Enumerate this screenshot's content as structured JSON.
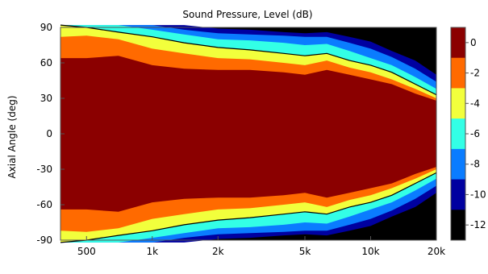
{
  "chart_data": {
    "type": "heatmap",
    "title": "Sound Pressure, Level  (dB)",
    "xlabel": "",
    "ylabel": "Axial Angle  (deg)",
    "x_scale": "log",
    "xlim": [
      380,
      20000
    ],
    "ylim": [
      -90,
      90
    ],
    "x_ticks": [
      {
        "value": 500,
        "label": "500"
      },
      {
        "value": 1000,
        "label": "1k"
      },
      {
        "value": 2000,
        "label": "2k"
      },
      {
        "value": 5000,
        "label": "5k"
      },
      {
        "value": 10000,
        "label": "10k"
      },
      {
        "value": 20000,
        "label": "20k"
      }
    ],
    "y_ticks": [
      90,
      60,
      30,
      0,
      -30,
      -60,
      -90
    ],
    "colorbar": {
      "ticks": [
        "0",
        "-2",
        "-4",
        "-6",
        "-8",
        "-10",
        "-12"
      ],
      "levels": [
        {
          "max_db": 0,
          "min_db": -3,
          "color": "#8b0000"
        },
        {
          "max_db": -3,
          "min_db": -5,
          "color": "#ff6a00"
        },
        {
          "max_db": -5,
          "min_db": -7,
          "color": "#f2ff3c"
        },
        {
          "max_db": -7,
          "min_db": -9,
          "color": "#33ffe6"
        },
        {
          "max_db": -9,
          "min_db": -11,
          "color": "#0a7cff"
        },
        {
          "max_db": -11,
          "min_db": -13,
          "color": "#0000a0"
        },
        {
          "max_db": -13,
          "min_db": -99,
          "color": "#000000"
        }
      ]
    },
    "contour_line_db": -6,
    "bands": {
      "freq_hz": [
        380,
        500,
        700,
        1000,
        1400,
        2000,
        2800,
        4000,
        5000,
        6300,
        8000,
        10000,
        12500,
        16000,
        20000
      ],
      "boundaries_deg": [
        [
          64,
          82,
          92,
          92,
          92,
          92
        ],
        [
          64,
          83,
          90,
          92,
          92,
          92
        ],
        [
          66,
          80,
          86,
          92,
          92,
          92
        ],
        [
          58,
          72,
          82,
          88,
          92,
          92
        ],
        [
          55,
          68,
          77,
          84,
          88,
          92
        ],
        [
          54,
          64,
          73,
          80,
          85,
          89
        ],
        [
          54,
          63,
          71,
          79,
          84,
          88
        ],
        [
          52,
          60,
          68,
          77,
          83,
          86
        ],
        [
          50,
          58,
          66,
          75,
          82,
          85
        ],
        [
          54,
          62,
          68,
          76,
          82,
          86
        ],
        [
          50,
          56,
          62,
          70,
          77,
          82
        ],
        [
          46,
          52,
          58,
          64,
          72,
          78
        ],
        [
          42,
          46,
          52,
          58,
          65,
          70
        ],
        [
          34,
          38,
          42,
          48,
          55,
          62
        ],
        [
          28,
          30,
          33,
          38,
          44,
          50
        ]
      ]
    }
  }
}
